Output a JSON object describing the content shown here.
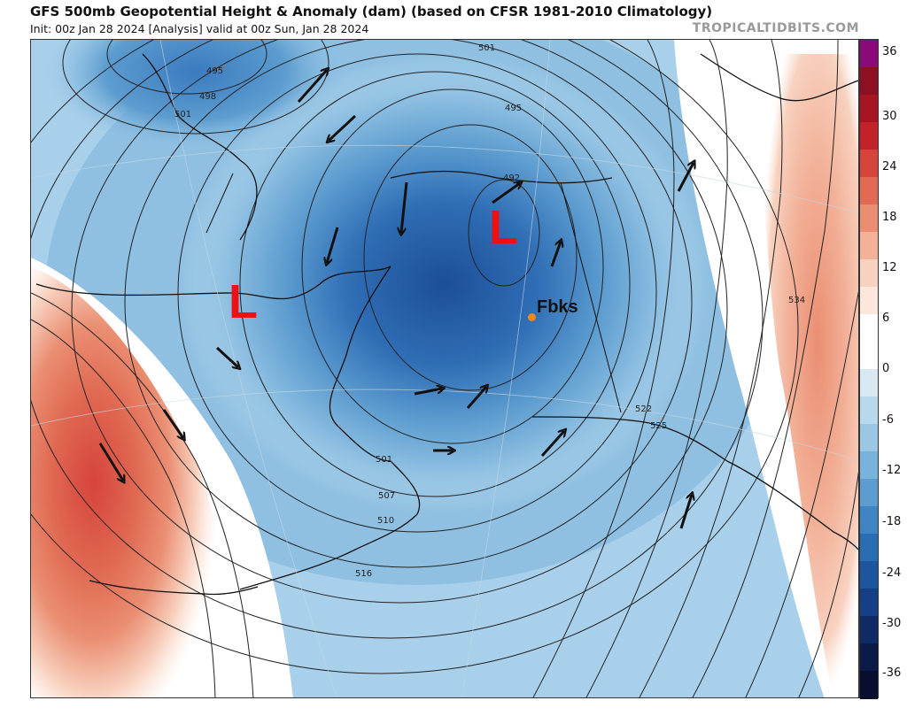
{
  "header": {
    "title": "GFS 500mb Geopotential Height & Anomaly (dam) (based on CFSR 1981-2010 Climatology)",
    "subtitle": "Init: 00z Jan 28 2024   [Analysis]   valid at 00z Sun, Jan 28 2024",
    "source": "TROPICALTIDBITS.COM"
  },
  "map": {
    "lows": [
      "L",
      "L"
    ],
    "station": {
      "label": "Fbks",
      "color": "#f08a16"
    },
    "contour_labels": [
      "495",
      "498",
      "501",
      "501",
      "495",
      "492",
      "501",
      "507",
      "510",
      "516",
      "522",
      "525",
      "534"
    ],
    "flow_arrows": 16
  },
  "colorbar": {
    "ticks": [
      "36",
      "30",
      "24",
      "18",
      "12",
      "6",
      "0",
      "-6",
      "-12",
      "-18",
      "-24",
      "-30",
      "-36"
    ],
    "colors": [
      "#8a0a7a",
      "#8c0f24",
      "#a81522",
      "#c2232a",
      "#d6443c",
      "#e06a53",
      "#ea8e72",
      "#f2b198",
      "#f8d2c0",
      "#fbe7dc",
      "#ffffff",
      "#ffffff",
      "#d9e9f3",
      "#b8d9ec",
      "#99c7e4",
      "#79b2da",
      "#5c9ccf",
      "#3f85c4",
      "#2a6db3",
      "#1d559f",
      "#163f86",
      "#102a66",
      "#0c1a47",
      "#080e2e"
    ]
  }
}
